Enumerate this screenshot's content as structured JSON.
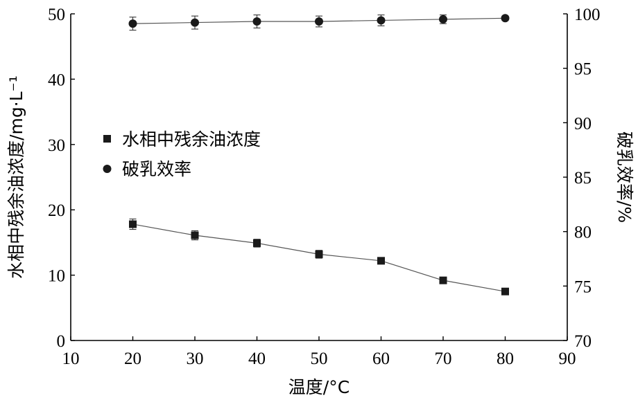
{
  "chart_data": {
    "type": "line",
    "xlabel": "温度/°C",
    "ylabel_left": "水相中残余油浓度/mg·L⁻¹",
    "ylabel_right": "破乳效率/%",
    "xlim": [
      10,
      90
    ],
    "ylim_left": [
      0,
      50
    ],
    "ylim_right": [
      70,
      100
    ],
    "x_ticks": [
      "10",
      "20",
      "30",
      "40",
      "50",
      "60",
      "70",
      "80",
      "90"
    ],
    "y_left_ticks": [
      "0",
      "10",
      "20",
      "30",
      "40",
      "50"
    ],
    "y_right_ticks": [
      "70",
      "75",
      "80",
      "85",
      "90",
      "95",
      "100"
    ],
    "legend_placement": "center-left",
    "grid": false,
    "x": [
      20,
      30,
      40,
      50,
      60,
      70,
      80
    ],
    "series": [
      {
        "name": "水相中残余油浓度",
        "axis": "left",
        "marker": "square",
        "values": [
          17.8,
          16.1,
          14.9,
          13.2,
          12.2,
          9.2,
          7.5
        ],
        "errors": [
          0.8,
          0.7,
          0.6,
          0.6,
          0.5,
          0.4,
          0.3
        ]
      },
      {
        "name": "破乳效率",
        "axis": "right",
        "marker": "circle",
        "values": [
          99.1,
          99.2,
          99.3,
          99.3,
          99.4,
          99.5,
          99.6
        ],
        "errors": [
          0.6,
          0.6,
          0.6,
          0.5,
          0.5,
          0.4,
          0.2
        ]
      }
    ]
  }
}
